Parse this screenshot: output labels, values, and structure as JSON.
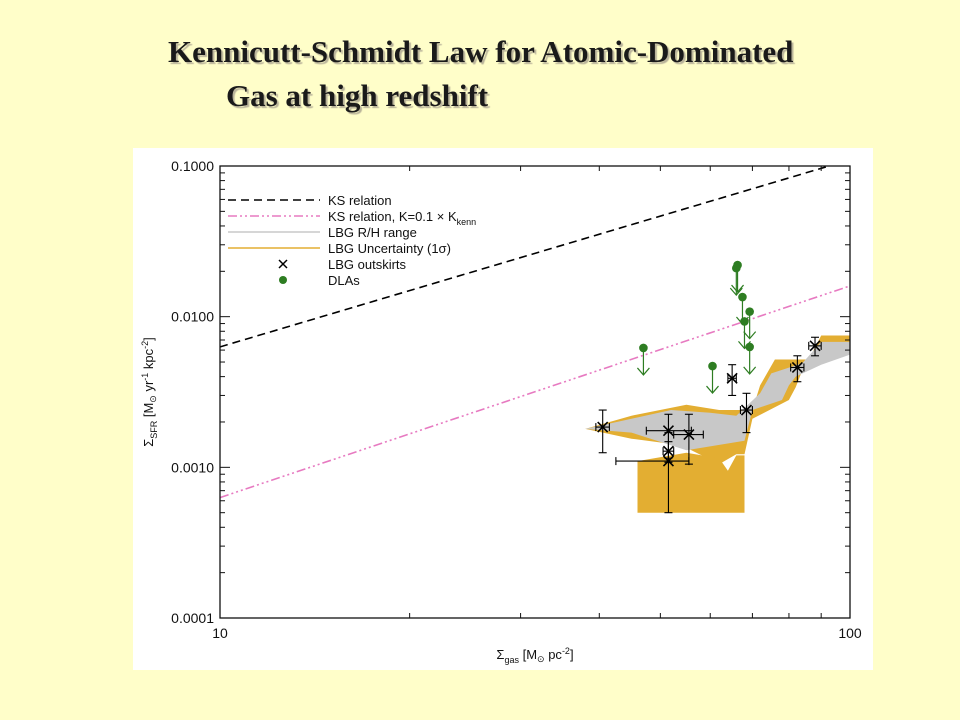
{
  "slide": {
    "title_line1": "Kennicutt-Schmidt Law for Atomic-Dominated",
    "title_line2": "Gas at high redshift"
  },
  "chart_data": {
    "type": "scatter",
    "xscale": "log",
    "yscale": "log",
    "xlim": [
      10,
      100
    ],
    "ylim": [
      0.0001,
      0.1
    ],
    "xticks": [
      "10",
      "100"
    ],
    "yticks": [
      "0.1000",
      "0.0100",
      "0.0010",
      "0.0001"
    ],
    "xlabel": {
      "sym": "Σ",
      "sub": "gas",
      "units": " [M",
      "sun": "⊙",
      "units2": " pc",
      "sup": "-2",
      "close": "]"
    },
    "ylabel": {
      "sym": "Σ",
      "sub": "SFR",
      "units": " [M",
      "sun": "⊙",
      "units2": " yr",
      "sup1": "-1",
      "units3": " kpc",
      "sup2": "-2",
      "close": "]"
    },
    "legend_position": "top-left",
    "legend": [
      {
        "key": "ks",
        "label": "KS relation"
      },
      {
        "key": "ks01",
        "label": "KS relation, K=0.1 × K",
        "sub": "kenn"
      },
      {
        "key": "rh",
        "label": "LBG R/H range"
      },
      {
        "key": "unc",
        "label": "LBG Uncertainty (1σ)"
      },
      {
        "key": "out",
        "label": "LBG outskirts"
      },
      {
        "key": "dla",
        "label": "DLAs"
      }
    ],
    "colors": {
      "ks": "#000000",
      "ks01": "#e77ac1",
      "rh": "#c8c8c8",
      "unc": "#e3ae32",
      "out": "#000000",
      "dla": "#2e7d22"
    },
    "ks_relation": {
      "x": [
        10,
        100
      ],
      "y": [
        0.0063,
        0.11
      ]
    },
    "ks_relation_k01": {
      "x": [
        10,
        100
      ],
      "y": [
        0.00063,
        0.016
      ]
    },
    "lbg_rh_range_band": {
      "upper": [
        [
          38,
          0.0018
        ],
        [
          45,
          0.0021
        ],
        [
          52,
          0.0024
        ],
        [
          60,
          0.0023
        ],
        [
          66,
          0.0022
        ],
        [
          72,
          0.0031
        ],
        [
          75,
          0.0042
        ],
        [
          84,
          0.0049
        ],
        [
          90,
          0.0068
        ],
        [
          100,
          0.0068
        ]
      ],
      "lower": [
        [
          100,
          0.0056
        ],
        [
          90,
          0.0048
        ],
        [
          82,
          0.004
        ],
        [
          80,
          0.0035
        ],
        [
          78,
          0.0028
        ],
        [
          70,
          0.0024
        ],
        [
          68,
          0.0015
        ],
        [
          55,
          0.0013
        ],
        [
          45,
          0.0017
        ],
        [
          38,
          0.0018
        ]
      ]
    },
    "lbg_uncertainty_band": {
      "outer": [
        [
          38,
          0.0018
        ],
        [
          45,
          0.0022
        ],
        [
          55,
          0.0026
        ],
        [
          62,
          0.0024
        ],
        [
          70,
          0.0024
        ],
        [
          72,
          0.0035
        ],
        [
          76,
          0.0052
        ],
        [
          86,
          0.0052
        ],
        [
          90,
          0.0075
        ],
        [
          100,
          0.0075
        ],
        [
          100,
          0.0063
        ],
        [
          96,
          0.0063
        ],
        [
          84,
          0.0044
        ],
        [
          82,
          0.0034
        ],
        [
          80,
          0.0028
        ],
        [
          70,
          0.0021
        ],
        [
          68,
          0.00122
        ],
        [
          66,
          0.00122
        ],
        [
          62,
          0.00105
        ],
        [
          54,
          0.0014
        ],
        [
          45,
          0.00155
        ],
        [
          38,
          0.0018
        ]
      ],
      "lower_block": [
        [
          46,
          0.0011
        ],
        [
          55,
          0.00125
        ],
        [
          62,
          0.00115
        ],
        [
          64,
          0.00095
        ],
        [
          66,
          0.0012
        ],
        [
          68,
          0.0012
        ],
        [
          68,
          0.0005
        ],
        [
          46,
          0.0005
        ]
      ]
    },
    "lbg_outskirts": [
      {
        "x": 40.5,
        "y": 0.00185,
        "xerr": [
          1.0,
          1.0
        ],
        "yerr": [
          0.0006,
          0.00055
        ]
      },
      {
        "x": 51.5,
        "y": 0.00175,
        "xerr": [
          4.0,
          4.5
        ],
        "yerr": [
          0.0006,
          0.0005
        ]
      },
      {
        "x": 51.5,
        "y": 0.0011,
        "xerr": [
          9.0,
          4.0
        ],
        "yerr": [
          0.0006,
          0.0006
        ]
      },
      {
        "x": 51.5,
        "y": 0.00128,
        "xerr": [
          1.0,
          1.0
        ],
        "yerr": [
          0.0002,
          0.0002
        ]
      },
      {
        "x": 55.5,
        "y": 0.00165,
        "xerr": [
          3.0,
          3.0
        ],
        "yerr": [
          0.0006,
          0.0006
        ]
      },
      {
        "x": 65.0,
        "y": 0.0039,
        "xerr": [
          1.0,
          1.0
        ],
        "yerr": [
          0.0009,
          0.0009
        ]
      },
      {
        "x": 68.5,
        "y": 0.0024,
        "xerr": [
          1.5,
          1.5
        ],
        "yerr": [
          0.0007,
          0.0007
        ]
      },
      {
        "x": 82.5,
        "y": 0.0046,
        "xerr": [
          2.0,
          2.0
        ],
        "yerr": [
          0.0009,
          0.0009
        ]
      },
      {
        "x": 88.0,
        "y": 0.0064,
        "xerr": [
          2.0,
          2.0
        ],
        "yerr": [
          0.0009,
          0.0009
        ]
      }
    ],
    "dla_upper_limits": [
      {
        "x": 47.0,
        "y": 0.0062
      },
      {
        "x": 60.5,
        "y": 0.0047
      },
      {
        "x": 66.0,
        "y": 0.021
      },
      {
        "x": 66.3,
        "y": 0.022
      },
      {
        "x": 67.5,
        "y": 0.0135
      },
      {
        "x": 68.0,
        "y": 0.0093
      },
      {
        "x": 69.3,
        "y": 0.0108
      },
      {
        "x": 69.3,
        "y": 0.0063
      }
    ]
  }
}
